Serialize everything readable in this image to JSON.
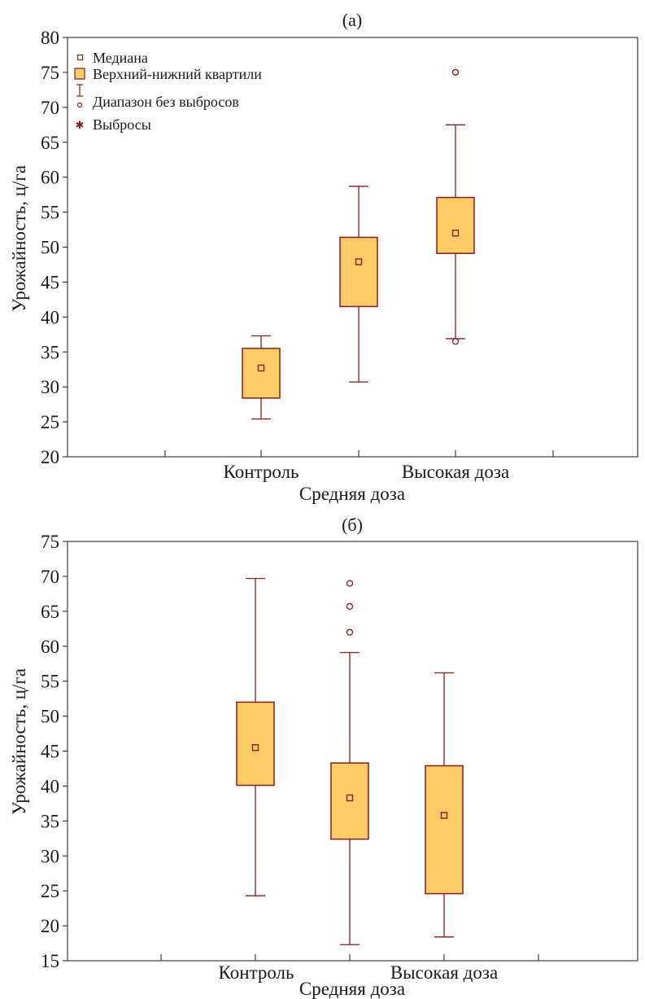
{
  "legend": [
    {
      "label": "Медиана",
      "icon": "median-square-icon"
    },
    {
      "label": "Верхний-нижний квартили",
      "icon": "quartile-box-icon"
    },
    {
      "label": "Диапазон без выбросов",
      "icon": "whisker-range-icon"
    },
    {
      "label": "Выбросы",
      "icon": "outlier-asterisk-icon"
    }
  ],
  "colors": {
    "box_fill": "#FFCC66",
    "box_stroke": "#8B1A1A",
    "axis": "#1a1a1a"
  },
  "chart_data": [
    {
      "type": "box",
      "title": "(а)",
      "xlabel": "Средняя доза",
      "ylabel": "Урожайность, ц/га",
      "xtick_labels": [
        "Контроль",
        "Высокая доза"
      ],
      "yticks": [
        20,
        25,
        30,
        35,
        40,
        45,
        50,
        55,
        60,
        65,
        70,
        75,
        80
      ],
      "ylim": [
        20,
        80
      ],
      "grid": false,
      "legend_position": "top-left",
      "boxes": [
        {
          "median": 32.7,
          "q1": 28.4,
          "q3": 35.5,
          "whisker_low": 25.4,
          "whisker_high": 37.3,
          "outliers": []
        },
        {
          "median": 47.9,
          "q1": 41.5,
          "q3": 51.4,
          "whisker_low": 30.7,
          "whisker_high": 58.7,
          "outliers": []
        },
        {
          "median": 52.0,
          "q1": 49.1,
          "q3": 57.1,
          "whisker_low": 36.9,
          "whisker_high": 67.5,
          "outliers": [
            75.0,
            36.5
          ]
        }
      ]
    },
    {
      "type": "box",
      "title": "(б)",
      "xlabel": "Средняя доза",
      "ylabel": "Урожайность, ц/га",
      "xtick_labels": [
        "Контроль",
        "Высокая доза"
      ],
      "yticks": [
        15,
        20,
        25,
        30,
        35,
        40,
        45,
        50,
        55,
        60,
        65,
        70,
        75
      ],
      "ylim": [
        15,
        75
      ],
      "grid": false,
      "legend_position": "none",
      "boxes": [
        {
          "median": 45.5,
          "q1": 40.1,
          "q3": 52.0,
          "whisker_low": 24.3,
          "whisker_high": 69.7,
          "outliers": []
        },
        {
          "median": 38.3,
          "q1": 32.4,
          "q3": 43.3,
          "whisker_low": 17.3,
          "whisker_high": 59.1,
          "outliers": [
            62.0,
            65.7,
            69.0
          ]
        },
        {
          "median": 35.8,
          "q1": 24.6,
          "q3": 42.9,
          "whisker_low": 18.4,
          "whisker_high": 56.2,
          "outliers": []
        }
      ]
    }
  ]
}
